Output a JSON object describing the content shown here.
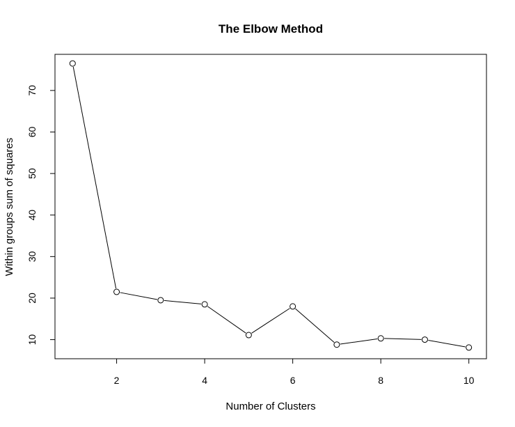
{
  "chart_data": {
    "type": "line",
    "title": "The Elbow Method",
    "xlabel": "Number of Clusters",
    "ylabel": "Within groups sum of squares",
    "x": [
      1,
      2,
      3,
      4,
      5,
      6,
      7,
      8,
      9,
      10
    ],
    "y": [
      76.5,
      21.5,
      19.5,
      18.5,
      11.1,
      18.0,
      8.8,
      10.3,
      10.0,
      8.1
    ],
    "markers": "open-circle",
    "xlim": [
      0.6,
      10.4
    ],
    "ylim": [
      5.4,
      78.7
    ],
    "xticks": [
      2,
      4,
      6,
      8,
      10
    ],
    "yticks": [
      10,
      20,
      30,
      40,
      50,
      60,
      70
    ],
    "grid": false,
    "line_color": "#000000"
  }
}
